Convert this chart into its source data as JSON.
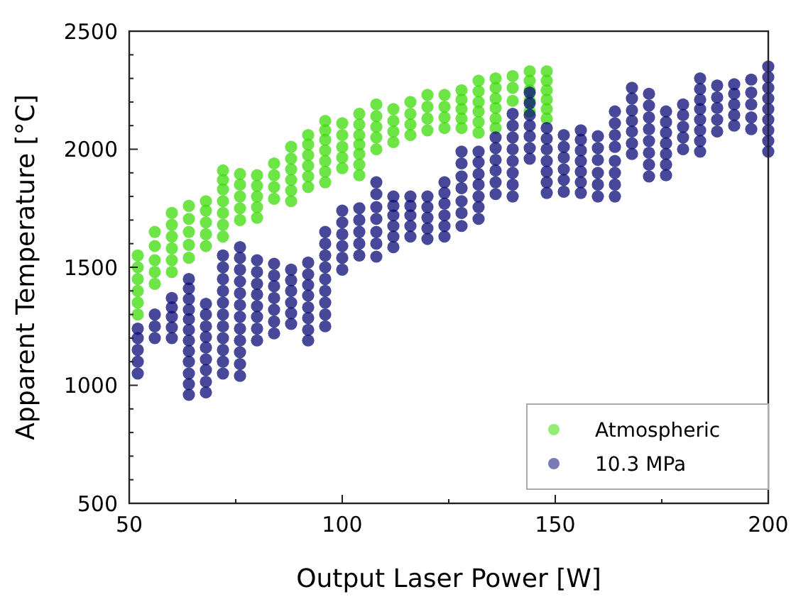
{
  "chart_data": {
    "type": "scatter",
    "xlabel": "Output Laser Power [W]",
    "ylabel": "Apparent Temperature [°C]",
    "xlim": [
      50,
      200
    ],
    "ylim": [
      500,
      2500
    ],
    "xticks": [
      50,
      {
        "value": 75,
        "label": null
      },
      100,
      {
        "value": 125,
        "label": null
      },
      150,
      {
        "value": 175,
        "label": null
      },
      200
    ],
    "yticks": [
      500,
      {
        "value": 600,
        "label": null
      },
      {
        "value": 700,
        "label": null
      },
      {
        "value": 800,
        "label": null
      },
      {
        "value": 900,
        "label": null
      },
      1000,
      {
        "value": 1100,
        "label": null
      },
      {
        "value": 1200,
        "label": null
      },
      {
        "value": 1300,
        "label": null
      },
      {
        "value": 1400,
        "label": null
      },
      1500,
      {
        "value": 1600,
        "label": null
      },
      {
        "value": 1700,
        "label": null
      },
      {
        "value": 1800,
        "label": null
      },
      {
        "value": 1900,
        "label": null
      },
      2000,
      {
        "value": 2100,
        "label": null
      },
      {
        "value": 2200,
        "label": null
      },
      {
        "value": 2300,
        "label": null
      },
      {
        "value": 2400,
        "label": null
      },
      2500
    ],
    "legend": "bottom right",
    "marker": "circle",
    "series": [
      {
        "name": "Atmospheric",
        "color": "#3ddc0a",
        "x": [
          52,
          52,
          52,
          52,
          52,
          52,
          56,
          56,
          56,
          56,
          56,
          60,
          60,
          60,
          60,
          60,
          60,
          64,
          64,
          64,
          64,
          64,
          68,
          68,
          68,
          68,
          68,
          72,
          72,
          72,
          72,
          72,
          72,
          72,
          76,
          76,
          76,
          76,
          76,
          80,
          80,
          80,
          80,
          80,
          84,
          84,
          84,
          84,
          88,
          88,
          88,
          88,
          88,
          88,
          92,
          92,
          92,
          92,
          92,
          92,
          96,
          96,
          96,
          96,
          96,
          96,
          96,
          100,
          100,
          100,
          100,
          100,
          104,
          104,
          104,
          104,
          104,
          104,
          104,
          108,
          108,
          108,
          108,
          108,
          112,
          112,
          112,
          112,
          116,
          116,
          116,
          116,
          120,
          120,
          120,
          120,
          124,
          124,
          124,
          124,
          128,
          128,
          128,
          128,
          128,
          132,
          132,
          132,
          132,
          132,
          132,
          136,
          136,
          136,
          136,
          136,
          136,
          140,
          140,
          140,
          144,
          144,
          144,
          144,
          144,
          148,
          148,
          148,
          148,
          148,
          148
        ],
        "values": [
          1300,
          1350,
          1400,
          1450,
          1500,
          1550,
          1430,
          1480,
          1530,
          1590,
          1650,
          1480,
          1530,
          1580,
          1630,
          1680,
          1730,
          1540,
          1595,
          1650,
          1705,
          1760,
          1590,
          1640,
          1690,
          1740,
          1780,
          1630,
          1680,
          1730,
          1780,
          1830,
          1870,
          1910,
          1700,
          1750,
          1800,
          1850,
          1895,
          1710,
          1755,
          1800,
          1845,
          1890,
          1790,
          1840,
          1890,
          1940,
          1780,
          1825,
          1870,
          1915,
          1960,
          2010,
          1840,
          1885,
          1930,
          1975,
          2020,
          2060,
          1860,
          1905,
          1950,
          1995,
          2040,
          2080,
          2120,
          1920,
          1965,
          2010,
          2060,
          2110,
          1890,
          1935,
          1980,
          2020,
          2060,
          2105,
          2150,
          2000,
          2050,
          2095,
          2140,
          2190,
          2030,
          2075,
          2120,
          2170,
          2060,
          2105,
          2150,
          2200,
          2080,
          2130,
          2180,
          2230,
          2090,
          2135,
          2180,
          2230,
          2090,
          2130,
          2170,
          2210,
          2250,
          2070,
          2115,
          2160,
          2200,
          2245,
          2290,
          2090,
          2130,
          2175,
          2215,
          2260,
          2300,
          2205,
          2260,
          2310,
          2160,
          2205,
          2250,
          2290,
          2330,
          2130,
          2170,
          2210,
          2250,
          2290,
          2330
        ]
      },
      {
        "name": "10.3 MPa",
        "color": "#0b0b78",
        "x": [
          52,
          52,
          52,
          52,
          52,
          56,
          56,
          56,
          60,
          60,
          60,
          60,
          60,
          64,
          64,
          64,
          64,
          64,
          64,
          64,
          64,
          64,
          64,
          64,
          64,
          68,
          68,
          68,
          68,
          68,
          68,
          68,
          68,
          68,
          72,
          72,
          72,
          72,
          72,
          72,
          72,
          72,
          72,
          72,
          72,
          76,
          76,
          76,
          76,
          76,
          76,
          76,
          76,
          76,
          76,
          76,
          76,
          80,
          80,
          80,
          80,
          80,
          80,
          80,
          80,
          84,
          84,
          84,
          84,
          84,
          84,
          84,
          88,
          88,
          88,
          88,
          88,
          88,
          92,
          92,
          92,
          92,
          92,
          92,
          92,
          92,
          96,
          96,
          96,
          96,
          96,
          96,
          96,
          96,
          96,
          100,
          100,
          100,
          100,
          100,
          100,
          104,
          104,
          104,
          104,
          104,
          108,
          108,
          108,
          108,
          108,
          108,
          108,
          112,
          112,
          112,
          112,
          112,
          112,
          116,
          116,
          116,
          116,
          116,
          120,
          120,
          120,
          120,
          120,
          124,
          124,
          124,
          124,
          124,
          124,
          128,
          128,
          128,
          128,
          128,
          128,
          128,
          132,
          132,
          132,
          132,
          132,
          132,
          132,
          136,
          136,
          136,
          136,
          136,
          136,
          140,
          140,
          140,
          140,
          140,
          140,
          140,
          140,
          144,
          144,
          144,
          144,
          144,
          144,
          144,
          148,
          148,
          148,
          148,
          148,
          148,
          148,
          152,
          152,
          152,
          152,
          152,
          152,
          156,
          156,
          156,
          156,
          156,
          156,
          156,
          160,
          160,
          160,
          160,
          160,
          160,
          164,
          164,
          164,
          164,
          164,
          164,
          164,
          164,
          168,
          168,
          168,
          168,
          168,
          168,
          168,
          172,
          172,
          172,
          172,
          172,
          172,
          172,
          172,
          176,
          176,
          176,
          176,
          176,
          176,
          176,
          180,
          180,
          180,
          180,
          180,
          184,
          184,
          184,
          184,
          184,
          184,
          184,
          184,
          188,
          188,
          188,
          188,
          188,
          192,
          192,
          192,
          192,
          192,
          196,
          196,
          196,
          196,
          196,
          200,
          200,
          200,
          200,
          200,
          200,
          200,
          200,
          200
        ],
        "values": [
          1050,
          1100,
          1150,
          1200,
          1240,
          1200,
          1250,
          1300,
          1200,
          1245,
          1290,
          1330,
          1370,
          960,
          1005,
          1050,
          1100,
          1145,
          1190,
          1235,
          1280,
          1320,
          1365,
          1410,
          1450,
          970,
          1015,
          1065,
          1110,
          1160,
          1205,
          1250,
          1300,
          1345,
          1050,
          1100,
          1150,
          1200,
          1250,
          1300,
          1350,
          1400,
          1450,
          1500,
          1550,
          1040,
          1090,
          1140,
          1190,
          1240,
          1290,
          1340,
          1390,
          1440,
          1490,
          1540,
          1585,
          1190,
          1240,
          1290,
          1335,
          1385,
          1430,
          1480,
          1530,
          1220,
          1270,
          1320,
          1370,
          1420,
          1465,
          1515,
          1260,
          1305,
          1350,
          1400,
          1445,
          1490,
          1190,
          1235,
          1285,
          1330,
          1380,
          1425,
          1470,
          1520,
          1250,
          1300,
          1350,
          1400,
          1450,
          1500,
          1550,
          1600,
          1650,
          1490,
          1540,
          1590,
          1640,
          1690,
          1740,
          1550,
          1600,
          1650,
          1700,
          1750,
          1545,
          1600,
          1650,
          1705,
          1755,
          1810,
          1860,
          1585,
          1630,
          1675,
          1720,
          1760,
          1800,
          1630,
          1675,
          1720,
          1760,
          1800,
          1620,
          1665,
          1710,
          1755,
          1800,
          1630,
          1675,
          1720,
          1770,
          1815,
          1860,
          1675,
          1730,
          1780,
          1835,
          1885,
          1940,
          1990,
          1705,
          1755,
          1800,
          1850,
          1895,
          1945,
          1990,
          1810,
          1860,
          1910,
          1955,
          2005,
          2050,
          1800,
          1850,
          1900,
          1950,
          2000,
          2050,
          2100,
          2150,
          1960,
          2005,
          2055,
          2100,
          2145,
          2195,
          2240,
          1815,
          1860,
          1905,
          1950,
          2000,
          2045,
          2090,
          1820,
          1870,
          1915,
          1965,
          2010,
          2060,
          1815,
          1860,
          1905,
          1950,
          1995,
          2040,
          2080,
          1800,
          1850,
          1900,
          1955,
          2005,
          2055,
          1800,
          1850,
          1900,
          1950,
          2010,
          2060,
          2110,
          2160,
          1980,
          2025,
          2075,
          2120,
          2165,
          2215,
          2260,
          1885,
          1935,
          1985,
          2035,
          2085,
          2135,
          2185,
          2235,
          1890,
          1935,
          1980,
          2025,
          2070,
          2115,
          2160,
          2000,
          2050,
          2095,
          2145,
          2190,
          1990,
          2035,
          2080,
          2125,
          2170,
          2210,
          2255,
          2300,
          2075,
          2125,
          2175,
          2220,
          2270,
          2100,
          2145,
          2190,
          2235,
          2275,
          2085,
          2135,
          2190,
          2240,
          2295,
          1990,
          2035,
          2080,
          2125,
          2170,
          2215,
          2260,
          2305,
          2350
        ]
      }
    ]
  }
}
